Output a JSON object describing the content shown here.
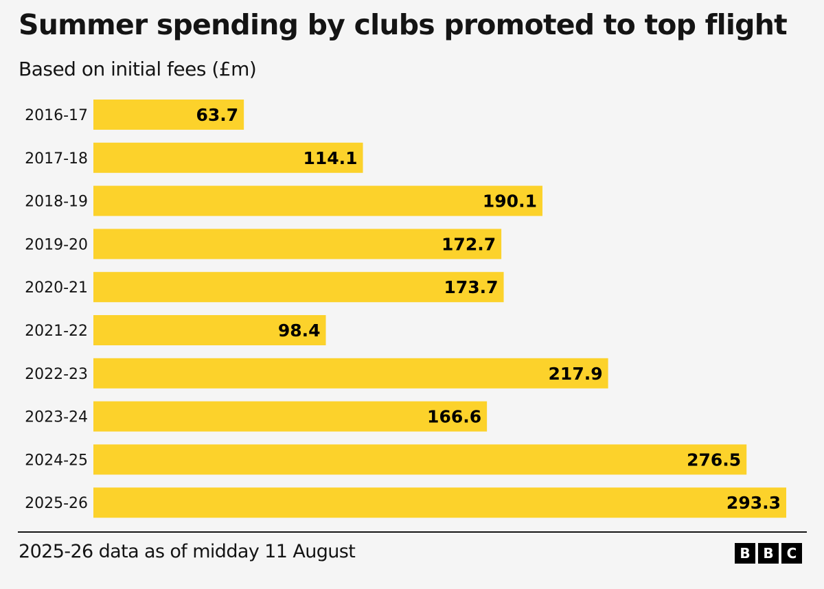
{
  "chart_data": {
    "type": "bar",
    "orientation": "horizontal",
    "title": "Summer spending by clubs promoted to top flight",
    "subtitle": "Based on initial fees (£m)",
    "xlabel": "",
    "ylabel": "",
    "categories": [
      "2016-17",
      "2017-18",
      "2018-19",
      "2019-20",
      "2020-21",
      "2021-22",
      "2022-23",
      "2023-24",
      "2024-25",
      "2025-26"
    ],
    "values": [
      63.7,
      114.1,
      190.1,
      172.7,
      173.7,
      98.4,
      217.9,
      166.6,
      276.5,
      293.3
    ],
    "data_labels": [
      "63.7",
      "114.1",
      "190.1",
      "172.7",
      "173.7",
      "98.4",
      "217.9",
      "166.6",
      "276.5",
      "293.3"
    ],
    "xlim": [
      0,
      293.3
    ],
    "grid": false,
    "bar_color": "#fcd22b",
    "label_color": "#141414"
  },
  "footer": {
    "note": "2025-26 data as of midday 11 August",
    "logo_letters": [
      "B",
      "B",
      "C"
    ]
  }
}
